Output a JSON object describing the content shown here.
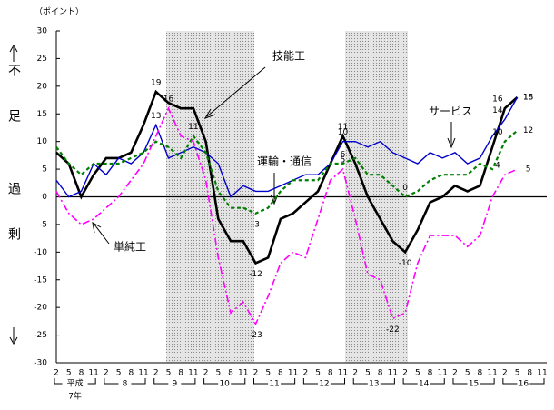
{
  "chart_data": {
    "type": "line",
    "y_unit": "（ポイント）",
    "y_label_top": "不足",
    "y_label_bottom": "過剰",
    "era": "平成",
    "categories": [
      "2",
      "5",
      "8",
      "11",
      "2",
      "5",
      "8",
      "11",
      "2",
      "5",
      "8",
      "11",
      "2",
      "5",
      "8",
      "11",
      "2",
      "5",
      "8",
      "11",
      "2",
      "5",
      "8",
      "11",
      "2",
      "5",
      "8",
      "11",
      "2",
      "5",
      "8",
      "11",
      "2",
      "5",
      "8",
      "11",
      "2",
      "5",
      "8",
      "11"
    ],
    "year_labels": [
      "7年",
      "8",
      "9",
      "10",
      "11",
      "12",
      "13",
      "14",
      "15",
      "16"
    ],
    "ylim": [
      -30,
      30
    ],
    "yticks": [
      30,
      25,
      20,
      15,
      10,
      5,
      0,
      -5,
      -10,
      -15,
      -20,
      -25,
      -30
    ],
    "series": [
      {
        "name": "技能工",
        "color": "#000000",
        "values": [
          8,
          6,
          0,
          4,
          7,
          7,
          8,
          13,
          19,
          17,
          16,
          16,
          10,
          -4,
          -8,
          -8,
          -12,
          -11,
          -4,
          -3,
          -1,
          1,
          6,
          11,
          6,
          0,
          -4,
          -8,
          -10,
          -6,
          -1,
          0,
          2,
          1,
          2,
          9,
          16,
          18,
          null,
          null
        ],
        "value_labels": [
          null,
          null,
          null,
          null,
          null,
          null,
          null,
          null,
          "19",
          null,
          null,
          null,
          null,
          null,
          null,
          null,
          "-12",
          null,
          null,
          null,
          null,
          null,
          null,
          "11",
          null,
          null,
          null,
          null,
          "-10",
          null,
          null,
          null,
          null,
          null,
          null,
          null,
          "16",
          "18",
          null,
          null
        ]
      },
      {
        "name": "サービス",
        "color": "#0000cc",
        "values": [
          3,
          0,
          1,
          6,
          4,
          7,
          6,
          8,
          13,
          7,
          8,
          9,
          8,
          6,
          0,
          2,
          1,
          1,
          2,
          3,
          4,
          4,
          6,
          10,
          10,
          9,
          10,
          8,
          7,
          6,
          8,
          7,
          8,
          6,
          7,
          11,
          14,
          18,
          null,
          null
        ],
        "value_labels": [
          null,
          null,
          null,
          null,
          null,
          null,
          null,
          null,
          "13",
          null,
          null,
          null,
          null,
          null,
          null,
          null,
          null,
          null,
          null,
          null,
          null,
          null,
          null,
          "10",
          null,
          null,
          null,
          null,
          null,
          null,
          null,
          null,
          null,
          null,
          null,
          null,
          "14",
          "18",
          null,
          null
        ]
      },
      {
        "name": "運輸・通信",
        "color": "#008000",
        "values": [
          9,
          6,
          4,
          6,
          6,
          6,
          7,
          8,
          10,
          9,
          7,
          11,
          8,
          1,
          -2,
          -2,
          -3,
          -2,
          1,
          3,
          3,
          3,
          6,
          6,
          7,
          4,
          4,
          2,
          0,
          1,
          3,
          4,
          4,
          4,
          6,
          5,
          10,
          12,
          null,
          null
        ],
        "value_labels": [
          null,
          null,
          null,
          null,
          null,
          null,
          null,
          null,
          null,
          null,
          null,
          "11",
          null,
          null,
          null,
          null,
          "-3",
          null,
          null,
          null,
          null,
          null,
          null,
          "6",
          null,
          null,
          null,
          null,
          "0",
          null,
          null,
          null,
          null,
          null,
          null,
          null,
          "10",
          "12",
          null,
          null
        ]
      },
      {
        "name": "単純工",
        "color": "#ff00ff",
        "values": [
          1,
          -3,
          -5,
          -4,
          -2,
          0,
          3,
          6,
          11,
          16,
          11,
          10,
          3,
          -11,
          -21,
          -19,
          -23,
          -18,
          -12,
          -10,
          -11,
          -4,
          3,
          5,
          -4,
          -14,
          -15,
          -22,
          -21,
          -12,
          -7,
          -7,
          -7,
          -9,
          -7,
          0,
          4,
          5,
          null,
          null
        ],
        "value_labels": [
          null,
          null,
          null,
          null,
          null,
          null,
          null,
          null,
          null,
          "16",
          null,
          null,
          null,
          null,
          null,
          null,
          "-23",
          null,
          null,
          null,
          null,
          null,
          null,
          "5",
          null,
          null,
          null,
          "-22",
          null,
          null,
          null,
          null,
          null,
          null,
          null,
          null,
          "4",
          "5",
          null,
          null
        ]
      }
    ]
  }
}
